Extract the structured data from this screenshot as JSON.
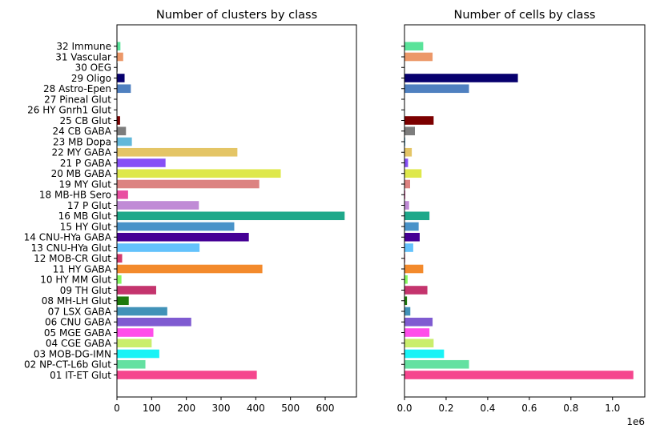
{
  "chart_data": [
    {
      "type": "bar",
      "orientation": "horizontal",
      "title": "Number of clusters by class",
      "xlabel": "",
      "ylabel": "",
      "xlim": [
        0,
        690
      ],
      "xticks": [
        0,
        100,
        200,
        300,
        400,
        500,
        600
      ],
      "xtick_labels": [
        "0",
        "100",
        "200",
        "300",
        "400",
        "500",
        "600"
      ],
      "grid": false,
      "categories": [
        "01 IT-ET Glut",
        "02 NP-CT-L6b Glut",
        "03 MOB-DG-IMN",
        "04 CGE GABA",
        "05 MGE GABA",
        "06 CNU GABA",
        "07 LSX GABA",
        "08 MH-LH Glut",
        "09 TH Glut",
        "10 HY MM Glut",
        "11 HY GABA",
        "12 MOB-CR Glut",
        "13 CNU-HYa Glut",
        "14 CNU-HYa GABA",
        "15 HY Glut",
        "16 MB Glut",
        "17 P Glut",
        "18 MB-HB Sero",
        "19 MY Glut",
        "20 MB GABA",
        "21 P GABA",
        "22 MY GABA",
        "23 MB Dopa",
        "24 CB GABA",
        "25 CB Glut",
        "26 HY Gnrh1 Glut",
        "27 Pineal Glut",
        "28 Astro-Epen",
        "29 Oligo",
        "30 OEG",
        "31 Vascular",
        "32 Immune"
      ],
      "values": [
        403,
        82,
        122,
        100,
        105,
        214,
        145,
        34,
        113,
        13,
        419,
        15,
        238,
        380,
        338,
        656,
        236,
        32,
        410,
        472,
        140,
        347,
        43,
        26,
        9,
        1,
        1,
        40,
        22,
        2,
        18,
        10
      ],
      "colors": [
        "#f5468e",
        "#64e1a1",
        "#19f3f6",
        "#caee6c",
        "#ff4dea",
        "#7f5bd1",
        "#4192b8",
        "#1d7a0c",
        "#c4346d",
        "#86f75e",
        "#f38a2c",
        "#d33a6c",
        "#63c2fc",
        "#450095",
        "#4993c9",
        "#1ea88a",
        "#c08bd6",
        "#e94ea1",
        "#dc8381",
        "#dee84b",
        "#8650f6",
        "#e4c566",
        "#62b8da",
        "#7d7d7d",
        "#7c0000",
        "#7d7d7d",
        "#7d7d7d",
        "#4f80c0",
        "#07006e",
        "#7d7d7d",
        "#ec9869",
        "#5ae39a"
      ]
    },
    {
      "type": "bar",
      "orientation": "horizontal",
      "title": "Number of cells by class",
      "xlabel": "",
      "ylabel": "",
      "xlim": [
        0,
        1155000
      ],
      "xticks": [
        0,
        200000,
        400000,
        600000,
        800000,
        1000000
      ],
      "xtick_labels": [
        "0.0",
        "0.2",
        "0.4",
        "0.6",
        "0.8",
        "1.0"
      ],
      "offset_label": "1e6",
      "grid": false,
      "categories": [
        "01 IT-ET Glut",
        "02 NP-CT-L6b Glut",
        "03 MOB-DG-IMN",
        "04 CGE GABA",
        "05 MGE GABA",
        "06 CNU GABA",
        "07 LSX GABA",
        "08 MH-LH Glut",
        "09 TH Glut",
        "10 HY MM Glut",
        "11 HY GABA",
        "12 MOB-CR Glut",
        "13 CNU-HYa Glut",
        "14 CNU-HYa GABA",
        "15 HY Glut",
        "16 MB Glut",
        "17 P Glut",
        "18 MB-HB Sero",
        "19 MY Glut",
        "20 MB GABA",
        "21 P GABA",
        "22 MY GABA",
        "23 MB Dopa",
        "24 CB GABA",
        "25 CB Glut",
        "26 HY Gnrh1 Glut",
        "27 Pineal Glut",
        "28 Astro-Epen",
        "29 Oligo",
        "30 OEG",
        "31 Vascular",
        "32 Immune"
      ],
      "values": [
        1100000,
        310000,
        190000,
        140000,
        120000,
        135000,
        28000,
        12000,
        110000,
        15000,
        90000,
        3000,
        42000,
        73000,
        68000,
        120000,
        22000,
        4000,
        27000,
        82000,
        17000,
        35000,
        4000,
        50000,
        140000,
        1000,
        1000,
        310000,
        545000,
        2000,
        135000,
        90000
      ],
      "colors": [
        "#f5468e",
        "#64e1a1",
        "#19f3f6",
        "#caee6c",
        "#ff4dea",
        "#7f5bd1",
        "#4192b8",
        "#1d7a0c",
        "#c4346d",
        "#86f75e",
        "#f38a2c",
        "#d33a6c",
        "#63c2fc",
        "#450095",
        "#4993c9",
        "#1ea88a",
        "#c08bd6",
        "#e94ea1",
        "#dc8381",
        "#dee84b",
        "#8650f6",
        "#e4c566",
        "#62b8da",
        "#7d7d7d",
        "#7c0000",
        "#7d7d7d",
        "#7d7d7d",
        "#4f80c0",
        "#07006e",
        "#7d7d7d",
        "#ec9869",
        "#5ae39a"
      ]
    }
  ]
}
